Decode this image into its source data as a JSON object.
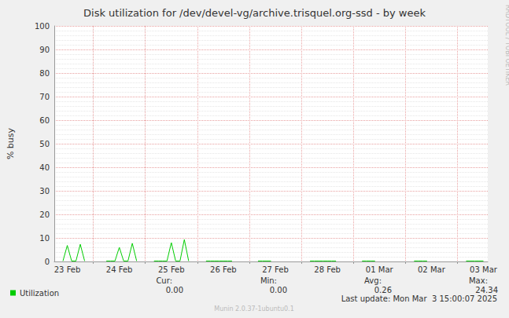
{
  "chart_data": {
    "type": "line",
    "title": "Disk utilization for /dev/devel-vg/archive.trisquel.org-ssd - by week",
    "y_label": "% busy",
    "categories": [
      null,
      null,
      null,
      "23 Feb",
      null,
      null,
      null,
      null,
      null,
      null,
      null,
      null,
      null,
      null,
      null,
      "24 Feb",
      null,
      null,
      null,
      null,
      null,
      null,
      null,
      null,
      null,
      null,
      null,
      "25 Feb",
      null,
      null,
      null,
      null,
      null,
      null,
      null,
      null,
      null,
      null,
      null,
      "26 Feb",
      null,
      null,
      null,
      null,
      null,
      null,
      null,
      null,
      null,
      null,
      null,
      "27 Feb",
      null,
      null,
      null,
      null,
      null,
      null,
      null,
      null,
      null,
      null,
      null,
      "28 Feb",
      null,
      null,
      null,
      null,
      null,
      null,
      null,
      null,
      null,
      null,
      null,
      "01 Mar",
      null,
      null,
      null,
      null,
      null,
      null,
      null,
      null,
      null,
      null,
      null,
      "02 Mar",
      null,
      null,
      null,
      null,
      null,
      null,
      null,
      null,
      null,
      null,
      null,
      "03 Mar",
      null
    ],
    "series": [
      {
        "name": "Utilization",
        "color": "#00cc00",
        "values": [
          null,
          null,
          0.2,
          6.8,
          0.2,
          0.2,
          7.3,
          0.2,
          null,
          null,
          null,
          null,
          0.2,
          0.2,
          0.2,
          6.0,
          0.2,
          0.2,
          7.7,
          0.2,
          null,
          null,
          null,
          0.2,
          0.2,
          0.2,
          0.2,
          8.0,
          0.2,
          0.2,
          9.3,
          0.2,
          null,
          null,
          null,
          0.2,
          0.2,
          0.2,
          0.2,
          0.2,
          0.2,
          0.2,
          null,
          null,
          null,
          null,
          null,
          0.2,
          0.2,
          0.2,
          0.2,
          null,
          null,
          null,
          null,
          null,
          null,
          null,
          null,
          0.2,
          0.2,
          0.2,
          0.2,
          0.2,
          0.2,
          0.2,
          null,
          null,
          null,
          null,
          null,
          0.2,
          0.2,
          0.2,
          0.2,
          null,
          null,
          null,
          null,
          null,
          null,
          null,
          null,
          0.2,
          0.2,
          0.2,
          0.2,
          null,
          null,
          null,
          null,
          null,
          null,
          null,
          null,
          0.2,
          0.2,
          0.2,
          0.2,
          0.2,
          null
        ]
      }
    ],
    "ylim": [
      0,
      100
    ],
    "yticks": [
      0,
      10,
      20,
      30,
      40,
      50,
      60,
      70,
      80,
      90,
      100
    ],
    "grid": true,
    "stats": [
      {
        "label": "Cur:",
        "value": "0.00"
      },
      {
        "label": "Min:",
        "value": "0.00"
      },
      {
        "label": "Avg:",
        "value": "0.26"
      },
      {
        "label": "Max:",
        "value": "24.34"
      }
    ],
    "last_update": "Last update: Mon Mar  3 15:00:07 2025",
    "footer": "Munin 2.0.37-1ubuntu0.1",
    "watermark": "RRDTOOL / TOBI OETIKER"
  }
}
